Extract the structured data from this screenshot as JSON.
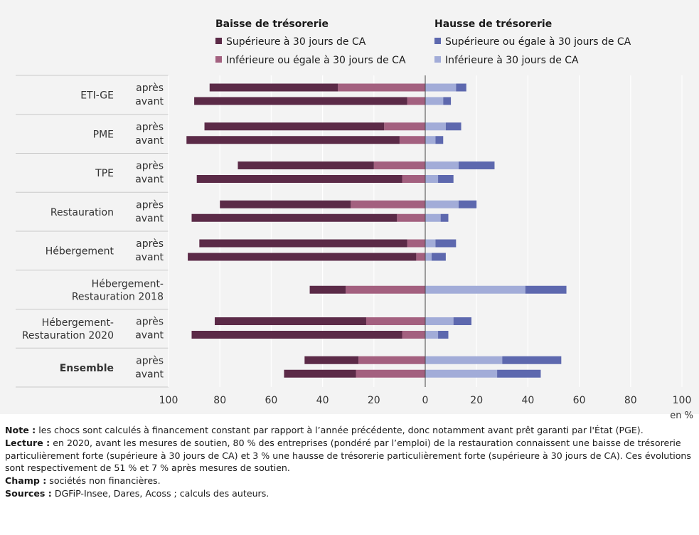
{
  "legend": {
    "left_title": "Baisse de trésorerie",
    "right_title": "Hausse de trésorerie",
    "items": [
      {
        "label": "Supérieure à 30 jours de CA",
        "color": "#5b2a47"
      },
      {
        "label": "Inférieure ou égale à 30 jours de CA",
        "color": "#a3607f"
      },
      {
        "label": "Supérieure ou égale à 30 jours de CA",
        "color": "#5d68ae"
      },
      {
        "label": "Inférieure à 30 jours de CA",
        "color": "#a2acd8"
      }
    ]
  },
  "chart_data": {
    "type": "bar",
    "orientation": "horizontal",
    "stacked": true,
    "diverging": true,
    "xlim": [
      -100,
      100
    ],
    "x_ticks": [
      -100,
      -80,
      -60,
      -40,
      -20,
      0,
      20,
      40,
      60,
      80,
      100
    ],
    "x_tick_labels": [
      "100",
      "80",
      "60",
      "40",
      "20",
      "0",
      "20",
      "40",
      "60",
      "80",
      "100"
    ],
    "x_unit": "en %",
    "series_order": [
      "Supérieure à 30 jours de CA",
      "Inférieure ou égale à 30 jours de CA",
      "Inférieure à 30 jours de CA",
      "Supérieure ou égale à 30 jours de CA"
    ],
    "groups": [
      {
        "label": "ETI-GE",
        "bold": false,
        "bars": [
          {
            "sub": "après",
            "baisse_sup30": 50,
            "baisse_inf30": 34,
            "hausse_inf30": 12,
            "hausse_sup30": 4
          },
          {
            "sub": "avant",
            "baisse_sup30": 83,
            "baisse_inf30": 7,
            "hausse_inf30": 7,
            "hausse_sup30": 3
          }
        ]
      },
      {
        "label": "PME",
        "bold": false,
        "bars": [
          {
            "sub": "après",
            "baisse_sup30": 70,
            "baisse_inf30": 16,
            "hausse_inf30": 8,
            "hausse_sup30": 6
          },
          {
            "sub": "avant",
            "baisse_sup30": 83,
            "baisse_inf30": 10,
            "hausse_inf30": 4,
            "hausse_sup30": 3
          }
        ]
      },
      {
        "label": "TPE",
        "bold": false,
        "bars": [
          {
            "sub": "après",
            "baisse_sup30": 53,
            "baisse_inf30": 20,
            "hausse_inf30": 13,
            "hausse_sup30": 14
          },
          {
            "sub": "avant",
            "baisse_sup30": 80,
            "baisse_inf30": 9,
            "hausse_inf30": 5,
            "hausse_sup30": 6
          }
        ]
      },
      {
        "label": "Restauration",
        "bold": false,
        "bars": [
          {
            "sub": "après",
            "baisse_sup30": 51,
            "baisse_inf30": 29,
            "hausse_inf30": 13,
            "hausse_sup30": 7
          },
          {
            "sub": "avant",
            "baisse_sup30": 80,
            "baisse_inf30": 11,
            "hausse_inf30": 6,
            "hausse_sup30": 3
          }
        ]
      },
      {
        "label": "Hébergement",
        "bold": false,
        "bars": [
          {
            "sub": "après",
            "baisse_sup30": 81,
            "baisse_inf30": 7,
            "hausse_inf30": 4,
            "hausse_sup30": 8
          },
          {
            "sub": "avant",
            "baisse_sup30": 89,
            "baisse_inf30": 3.5,
            "hausse_inf30": 2.5,
            "hausse_sup30": 5.5
          }
        ]
      },
      {
        "label": "Hébergement-\nRestauration 2018",
        "bold": false,
        "bars": [
          {
            "sub": "",
            "baisse_sup30": 14,
            "baisse_inf30": 31,
            "hausse_inf30": 39,
            "hausse_sup30": 16
          }
        ]
      },
      {
        "label": "Hébergement-\nRestauration 2020",
        "bold": false,
        "bars": [
          {
            "sub": "après",
            "baisse_sup30": 59,
            "baisse_inf30": 23,
            "hausse_inf30": 11,
            "hausse_sup30": 7
          },
          {
            "sub": "avant",
            "baisse_sup30": 82,
            "baisse_inf30": 9,
            "hausse_inf30": 5,
            "hausse_sup30": 4
          }
        ]
      },
      {
        "label": "Ensemble",
        "bold": true,
        "bars": [
          {
            "sub": "après",
            "baisse_sup30": 21,
            "baisse_inf30": 26,
            "hausse_inf30": 30,
            "hausse_sup30": 23
          },
          {
            "sub": "avant",
            "baisse_sup30": 28,
            "baisse_inf30": 27,
            "hausse_inf30": 28,
            "hausse_sup30": 17
          }
        ]
      }
    ]
  },
  "notes": [
    {
      "label": "Note :",
      "text": " les chocs sont calculés à financement constant par rapport à l’année précédente, donc notamment avant prêt garanti par l'État (PGE)."
    },
    {
      "label": "Lecture :",
      "text": " en 2020, avant les mesures de soutien, 80 % des entreprises (pondéré par l’emploi) de la restauration connaissent une baisse de trésorerie particulièrement forte (supérieure à 30 jours de CA) et 3 % une hausse de trésorerie particulièrement forte (supérieure à 30 jours de CA). Ces évolutions sont respectivement de 51 % et 7 % après mesures de soutien."
    },
    {
      "label": "Champ :",
      "text": " sociétés non financières."
    },
    {
      "label": "Sources :",
      "text": " DGFiP-Insee, Dares, Acoss ; calculs des auteurs."
    }
  ]
}
